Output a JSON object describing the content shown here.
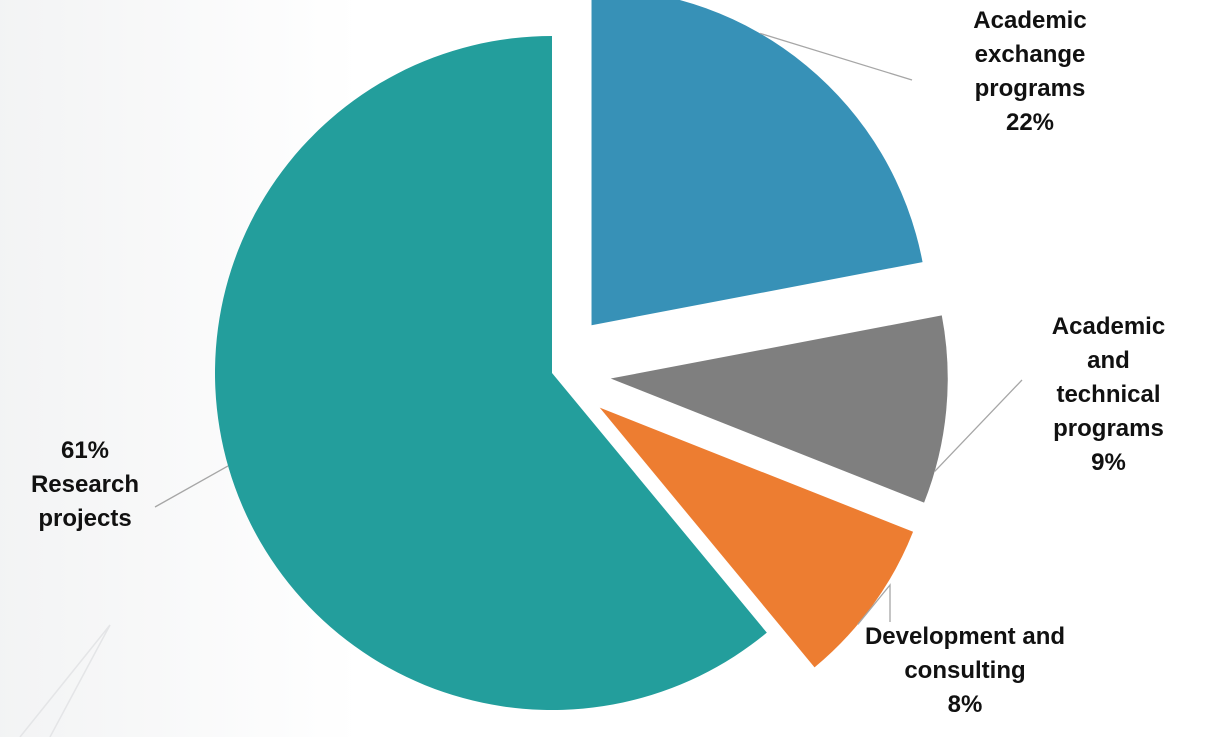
{
  "chart_data": {
    "type": "pie",
    "title": "",
    "exploded": true,
    "slices": [
      {
        "name": "Academic exchange programs",
        "value": 22,
        "color": "#3791B7",
        "label_lines": [
          "Academic",
          "exchange",
          "programs"
        ],
        "percent_label": "22%"
      },
      {
        "name": "Academic and technical programs",
        "value": 9,
        "color": "#7F7F7F",
        "label_lines": [
          "Academic",
          "and",
          "technical",
          "programs"
        ],
        "percent_label": "9%"
      },
      {
        "name": "Development and consulting",
        "value": 8,
        "color": "#ED7D31",
        "label_lines": [
          "Development and",
          "consulting"
        ],
        "percent_label": "8%"
      },
      {
        "name": "Research projects",
        "value": 61,
        "color": "#239E9C",
        "label_lines": [
          "Research",
          "projects"
        ],
        "percent_label": "61%"
      }
    ],
    "legend": "none",
    "leader_line_color": "#A6A6A6"
  }
}
